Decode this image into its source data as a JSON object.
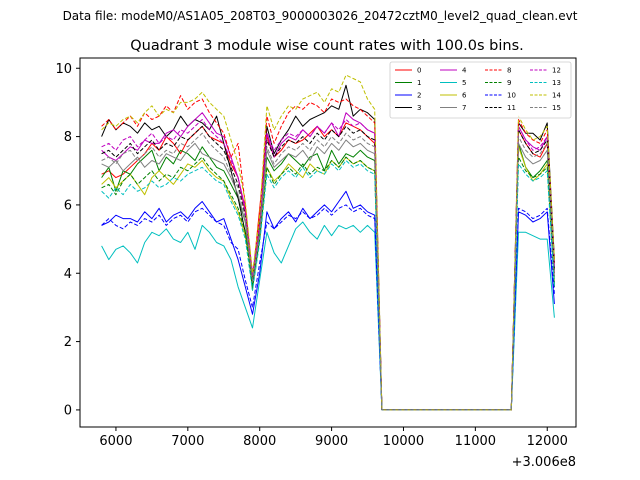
{
  "chart_data": {
    "type": "line",
    "suptitle": "Data file: modeM0/AS1A05_208T03_9000003026_20472cztM0_level2_quad_clean.evt",
    "title": "Quadrant 3 module wise count rates with 100.0s bins.",
    "xlabel": "",
    "ylabel": "",
    "x_offset_label": "+3.006e8",
    "xlim": [
      5500,
      12400
    ],
    "ylim": [
      -0.5,
      10.3
    ],
    "xticks": [
      6000,
      7000,
      8000,
      9000,
      10000,
      11000,
      12000
    ],
    "yticks": [
      0,
      2,
      4,
      6,
      8,
      10
    ],
    "grid": false,
    "legend": {
      "position": "top-right",
      "columns": 4
    },
    "x": [
      5800,
      5900,
      6000,
      6100,
      6200,
      6300,
      6400,
      6500,
      6600,
      6700,
      6800,
      6900,
      7000,
      7100,
      7200,
      7300,
      7400,
      7500,
      7600,
      7700,
      7800,
      7900,
      8000,
      8100,
      8200,
      8300,
      8400,
      8500,
      8600,
      8700,
      8800,
      8900,
      9000,
      9100,
      9200,
      9300,
      9400,
      9500,
      9600,
      9700,
      11500,
      11600,
      11700,
      11800,
      11900,
      12000,
      12100
    ],
    "series": [
      {
        "name": "0",
        "color": "#ff0000",
        "dash": false,
        "values": [
          6.9,
          7.0,
          6.8,
          6.9,
          7.1,
          7.3,
          7.5,
          7.8,
          7.6,
          8.0,
          7.8,
          7.5,
          7.9,
          8.1,
          8.3,
          8.0,
          7.9,
          7.8,
          7.2,
          6.8,
          5.8,
          3.8,
          5.9,
          8.0,
          7.4,
          7.6,
          7.9,
          7.8,
          7.9,
          8.1,
          8.3,
          8.0,
          8.2,
          8.0,
          8.4,
          8.3,
          8.2,
          8.0,
          7.8,
          0.0,
          0.0,
          8.2,
          7.8,
          7.5,
          7.4,
          7.8,
          4.0
        ]
      },
      {
        "name": "1",
        "color": "#008000",
        "dash": false,
        "values": [
          6.8,
          7.1,
          6.4,
          7.0,
          6.9,
          7.2,
          7.4,
          7.6,
          7.0,
          7.4,
          7.2,
          7.6,
          7.5,
          7.3,
          7.7,
          7.4,
          7.1,
          7.0,
          6.6,
          6.2,
          5.5,
          3.5,
          5.5,
          7.4,
          7.0,
          7.2,
          7.5,
          7.3,
          7.1,
          7.4,
          7.5,
          7.0,
          7.6,
          7.2,
          7.5,
          7.4,
          7.6,
          7.4,
          7.3,
          0.0,
          0.0,
          7.8,
          7.1,
          6.8,
          7.0,
          7.3,
          3.6
        ]
      },
      {
        "name": "2",
        "color": "#0000ff",
        "dash": false,
        "values": [
          5.4,
          5.5,
          5.7,
          5.6,
          5.6,
          5.5,
          5.8,
          5.6,
          5.9,
          5.5,
          5.7,
          5.8,
          5.6,
          5.9,
          6.1,
          5.8,
          5.5,
          5.6,
          5.0,
          4.4,
          3.6,
          2.8,
          4.0,
          5.8,
          5.3,
          5.6,
          5.8,
          5.5,
          5.9,
          5.6,
          5.8,
          6.0,
          5.8,
          6.1,
          6.4,
          5.9,
          6.0,
          5.8,
          5.7,
          0.0,
          0.0,
          5.8,
          5.7,
          5.5,
          5.6,
          5.8,
          3.1
        ]
      },
      {
        "name": "3",
        "color": "#000000",
        "dash": false,
        "values": [
          8.0,
          8.5,
          8.2,
          8.4,
          8.3,
          8.1,
          8.4,
          8.2,
          8.3,
          8.0,
          8.2,
          8.6,
          8.3,
          8.5,
          8.4,
          8.2,
          8.6,
          7.8,
          7.0,
          6.2,
          5.2,
          3.9,
          5.0,
          8.3,
          7.5,
          7.9,
          8.2,
          8.6,
          8.3,
          8.5,
          8.6,
          8.7,
          8.9,
          8.8,
          9.5,
          8.6,
          8.8,
          8.7,
          8.5,
          0.0,
          0.0,
          8.4,
          8.1,
          8.1,
          7.9,
          8.4,
          4.4
        ]
      },
      {
        "name": "4",
        "color": "#bf00bf",
        "dash": false,
        "values": [
          7.6,
          7.4,
          7.3,
          7.5,
          7.7,
          7.6,
          7.9,
          7.8,
          7.8,
          8.1,
          8.2,
          8.0,
          8.3,
          8.5,
          8.7,
          8.4,
          8.1,
          8.0,
          7.4,
          6.8,
          5.9,
          4.0,
          5.2,
          8.1,
          7.4,
          7.8,
          8.0,
          7.9,
          8.2,
          8.0,
          8.3,
          8.1,
          8.4,
          8.0,
          8.7,
          8.5,
          8.4,
          8.2,
          8.1,
          0.0,
          0.0,
          8.3,
          7.9,
          7.7,
          7.6,
          8.0,
          4.2
        ]
      },
      {
        "name": "5",
        "color": "#00bfbf",
        "dash": false,
        "values": [
          4.8,
          4.4,
          4.7,
          4.8,
          4.6,
          4.3,
          4.9,
          5.2,
          5.1,
          5.3,
          5.0,
          4.9,
          5.2,
          4.7,
          5.4,
          5.2,
          4.9,
          4.8,
          4.4,
          3.6,
          3.0,
          2.4,
          3.8,
          5.2,
          4.6,
          4.3,
          4.8,
          5.3,
          5.5,
          5.2,
          5.0,
          5.4,
          5.1,
          5.4,
          5.3,
          5.4,
          5.2,
          5.4,
          5.2,
          0.0,
          0.0,
          5.2,
          5.2,
          5.1,
          5.0,
          5.0,
          2.7
        ]
      },
      {
        "name": "6",
        "color": "#bfbf00",
        "dash": false,
        "values": [
          6.6,
          6.8,
          6.5,
          6.7,
          6.9,
          6.6,
          6.3,
          6.8,
          7.0,
          6.8,
          6.6,
          6.9,
          7.2,
          7.1,
          7.3,
          7.0,
          6.8,
          6.7,
          6.2,
          5.8,
          5.1,
          3.7,
          5.0,
          7.1,
          6.7,
          6.9,
          7.2,
          7.0,
          6.8,
          7.2,
          7.0,
          6.9,
          7.3,
          7.1,
          7.4,
          7.2,
          7.3,
          7.1,
          7.0,
          0.0,
          0.0,
          7.7,
          7.1,
          6.7,
          6.9,
          7.2,
          3.8
        ]
      },
      {
        "name": "7",
        "color": "#808080",
        "dash": false,
        "values": [
          7.2,
          7.1,
          7.3,
          7.0,
          7.2,
          7.4,
          7.1,
          7.3,
          7.2,
          7.5,
          7.4,
          7.3,
          7.6,
          7.8,
          7.5,
          7.4,
          7.3,
          7.2,
          6.8,
          6.3,
          5.5,
          3.7,
          5.1,
          7.6,
          7.1,
          7.3,
          7.5,
          7.4,
          7.6,
          7.3,
          7.7,
          7.5,
          7.8,
          7.6,
          7.9,
          7.7,
          7.8,
          7.6,
          7.5,
          0.0,
          0.0,
          7.8,
          7.4,
          7.2,
          7.3,
          7.6,
          3.9
        ]
      },
      {
        "name": "8",
        "color": "#ff0000",
        "dash": true,
        "values": [
          8.3,
          8.5,
          8.2,
          8.4,
          8.6,
          8.3,
          8.7,
          8.5,
          8.6,
          8.9,
          8.7,
          9.2,
          8.8,
          9.0,
          9.1,
          8.7,
          8.4,
          8.1,
          7.4,
          7.8,
          6.0,
          3.9,
          5.6,
          8.6,
          7.8,
          8.3,
          8.7,
          8.9,
          8.8,
          9.0,
          8.9,
          8.7,
          9.1,
          9.0,
          9.1,
          8.9,
          8.8,
          8.6,
          8.4,
          0.0,
          0.0,
          8.5,
          8.1,
          7.9,
          7.8,
          8.2,
          4.3
        ]
      },
      {
        "name": "9",
        "color": "#008000",
        "dash": true,
        "values": [
          6.5,
          6.6,
          6.3,
          6.7,
          6.9,
          6.6,
          6.8,
          7.0,
          6.7,
          6.9,
          6.8,
          7.1,
          7.0,
          7.2,
          7.4,
          7.1,
          6.9,
          6.7,
          6.3,
          5.9,
          5.2,
          3.6,
          5.0,
          7.1,
          6.6,
          6.9,
          7.1,
          6.9,
          7.2,
          6.9,
          7.1,
          7.0,
          7.3,
          7.1,
          7.4,
          7.2,
          7.3,
          7.1,
          7.0,
          0.0,
          0.0,
          7.4,
          7.0,
          6.8,
          6.9,
          7.1,
          3.7
        ]
      },
      {
        "name": "10",
        "color": "#0000ff",
        "dash": true,
        "values": [
          5.4,
          5.6,
          5.4,
          5.3,
          5.5,
          5.4,
          5.6,
          5.5,
          5.7,
          5.4,
          5.6,
          5.7,
          5.5,
          5.8,
          5.9,
          5.7,
          5.5,
          5.4,
          4.9,
          4.7,
          3.8,
          3.0,
          4.3,
          5.5,
          5.3,
          5.5,
          5.7,
          5.6,
          5.8,
          5.6,
          5.7,
          5.9,
          5.7,
          5.9,
          6.0,
          5.8,
          5.9,
          5.7,
          5.6,
          0.0,
          0.0,
          5.9,
          5.8,
          5.6,
          5.7,
          5.9,
          3.4
        ]
      },
      {
        "name": "11",
        "color": "#000000",
        "dash": true,
        "values": [
          7.5,
          7.6,
          7.4,
          7.6,
          7.8,
          7.5,
          7.7,
          7.9,
          7.6,
          7.8,
          7.7,
          8.0,
          7.9,
          8.1,
          8.3,
          8.0,
          7.8,
          7.6,
          7.1,
          6.6,
          5.7,
          3.8,
          5.3,
          7.9,
          7.4,
          7.7,
          7.9,
          7.8,
          8.0,
          7.8,
          8.1,
          7.9,
          8.2,
          8.0,
          8.3,
          8.1,
          8.2,
          8.0,
          7.9,
          0.0,
          0.0,
          8.2,
          7.8,
          7.5,
          7.6,
          7.9,
          4.1
        ]
      },
      {
        "name": "12",
        "color": "#bf00bf",
        "dash": true,
        "values": [
          7.7,
          7.8,
          7.6,
          7.9,
          8.0,
          7.7,
          7.9,
          8.1,
          7.8,
          8.0,
          7.9,
          8.2,
          8.1,
          8.3,
          8.5,
          8.2,
          8.0,
          7.8,
          7.3,
          6.8,
          5.8,
          3.9,
          5.4,
          8.1,
          7.6,
          7.9,
          8.1,
          8.0,
          8.2,
          8.0,
          8.3,
          8.1,
          8.4,
          8.2,
          8.5,
          8.3,
          8.4,
          8.2,
          8.1,
          0.0,
          0.0,
          8.3,
          7.9,
          7.6,
          7.7,
          8.0,
          4.2
        ]
      },
      {
        "name": "13",
        "color": "#00bfbf",
        "dash": true,
        "values": [
          6.4,
          6.2,
          6.5,
          6.3,
          6.6,
          6.4,
          6.5,
          6.7,
          6.5,
          6.6,
          6.8,
          6.7,
          6.9,
          7.0,
          7.1,
          6.9,
          6.7,
          6.6,
          6.1,
          5.7,
          5.0,
          3.5,
          4.9,
          6.9,
          6.5,
          6.8,
          7.0,
          6.8,
          7.1,
          6.8,
          7.0,
          6.9,
          7.2,
          7.0,
          7.3,
          7.1,
          7.2,
          7.0,
          6.9,
          0.0,
          0.0,
          7.2,
          6.9,
          6.7,
          6.8,
          7.0,
          3.6
        ]
      },
      {
        "name": "14",
        "color": "#bfbf00",
        "dash": true,
        "values": [
          8.2,
          8.4,
          8.3,
          8.5,
          8.6,
          8.4,
          8.7,
          8.9,
          8.6,
          8.8,
          8.7,
          9.0,
          9.0,
          9.1,
          9.3,
          9.0,
          8.8,
          8.6,
          7.9,
          7.2,
          6.1,
          4.0,
          5.7,
          8.9,
          8.2,
          8.6,
          8.9,
          8.8,
          9.1,
          9.2,
          9.3,
          9.0,
          9.4,
          9.3,
          9.8,
          9.7,
          9.6,
          9.1,
          8.8,
          0.0,
          0.0,
          8.6,
          8.2,
          7.9,
          8.0,
          8.3,
          4.4
        ]
      },
      {
        "name": "15",
        "color": "#808080",
        "dash": true,
        "values": [
          7.3,
          7.4,
          7.2,
          7.5,
          7.6,
          7.3,
          7.5,
          7.7,
          7.4,
          7.6,
          7.5,
          7.8,
          7.7,
          7.9,
          8.1,
          7.8,
          7.6,
          7.4,
          6.9,
          6.5,
          5.6,
          3.8,
          5.2,
          7.7,
          7.2,
          7.5,
          7.7,
          7.6,
          7.8,
          7.6,
          7.9,
          7.7,
          8.0,
          7.8,
          8.1,
          7.9,
          8.0,
          7.8,
          7.7,
          0.0,
          0.0,
          8.0,
          7.6,
          7.4,
          7.5,
          7.8,
          4.0
        ]
      }
    ]
  }
}
